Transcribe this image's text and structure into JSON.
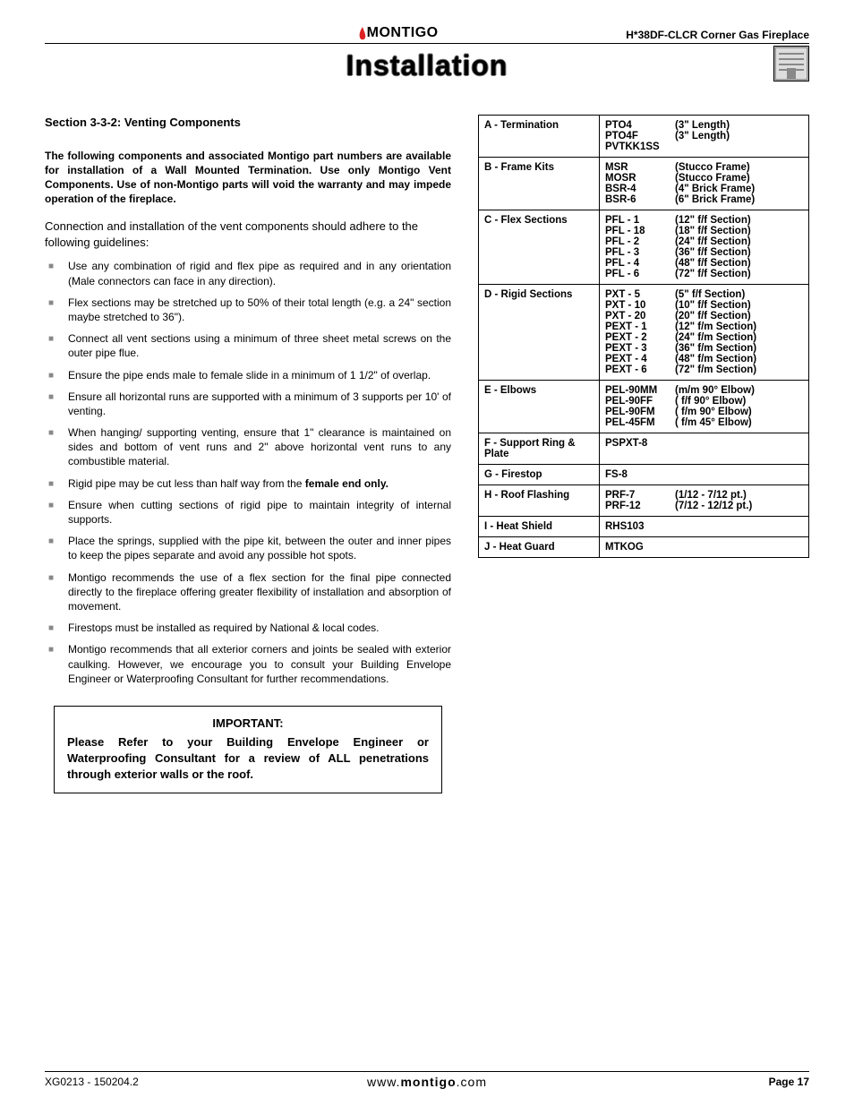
{
  "header": {
    "brand_text": "MONTIGO",
    "doc_title": "H*38DF-CLCR Corner Gas Fireplace"
  },
  "main_title": "Installation",
  "section_heading": "Section 3-3-2:  Venting Components",
  "bold_paragraph": "The following components and associated Montigo part numbers are available for installation of a Wall Mounted Termination. Use only Montigo Vent Components.  Use of non-Montigo parts will void the warranty and may impede operation of the fireplace.",
  "intro_paragraph": "Connection and installation of the vent components should adhere to the following guidelines:",
  "bullets": [
    {
      "text": "Use any combination of rigid and flex pipe as required and in any orientation (Male connectors can face in any direction)."
    },
    {
      "text": "Flex sections may be stretched up to 50% of their total length (e.g. a 24\" section maybe stretched to 36\")."
    },
    {
      "text": "Connect all vent sections using a minimum of three sheet metal screws on the outer pipe flue."
    },
    {
      "text": "Ensure the pipe ends male to female slide in a minimum of 1 1/2\" of overlap."
    },
    {
      "text": "Ensure all horizontal runs are supported with a minimum of 3 supports per 10' of venting."
    },
    {
      "text": "When hanging/ supporting venting, ensure that 1\" clearance is maintained on sides and bottom of vent runs and 2\" above horizontal vent runs to any combustible material."
    },
    {
      "pre": "Rigid pipe may be cut less than half way from the ",
      "bold": "female end only."
    },
    {
      "text": "Ensure when cutting sections of rigid pipe to maintain integrity of internal supports."
    },
    {
      "text": "Place the springs, supplied with the pipe kit, between the outer and inner pipes to keep the pipes separate and avoid any possible hot spots."
    },
    {
      "text": "Montigo recommends the use of a flex section for the final pipe connected directly to the fireplace offering greater flexibility of installation and absorption of movement."
    },
    {
      "text": "Firestops must be installed as required by National & local codes."
    },
    {
      "text": "Montigo recommends that all exterior corners and joints be sealed with exterior caulking. However, we encourage you to consult your Building Envelope Engineer or Waterproofing Consultant for further recommendations."
    }
  ],
  "important": {
    "title": "IMPORTANT:",
    "body": "Please Refer to your Building Envelope Engineer or Waterproofing Consultant for a review of ALL penetrations through exterior walls or the roof."
  },
  "parts_table": [
    {
      "category": "A - Termination",
      "rows": [
        {
          "code": "PTO4",
          "desc": "(3\" Length)"
        },
        {
          "code": "PTO4F",
          "desc": "(3\" Length)"
        },
        {
          "code": "PVTKK1SS",
          "desc": ""
        }
      ]
    },
    {
      "category": "B - Frame Kits",
      "rows": [
        {
          "code": "MSR",
          "desc": "(Stucco Frame)"
        },
        {
          "code": "MOSR",
          "desc": "(Stucco Frame)"
        },
        {
          "code": "BSR-4",
          "desc": "(4\" Brick Frame)"
        },
        {
          "code": "BSR-6",
          "desc": "(6\" Brick Frame)"
        }
      ]
    },
    {
      "category": "C - Flex Sections",
      "rows": [
        {
          "code": "PFL - 1",
          "desc": "(12\" f/f Section)"
        },
        {
          "code": "PFL - 18",
          "desc": "(18\" f/f Section)"
        },
        {
          "code": "PFL - 2",
          "desc": "(24\" f/f Section)"
        },
        {
          "code": "PFL - 3",
          "desc": "(36\" f/f Section)"
        },
        {
          "code": "PFL - 4",
          "desc": "(48\" f/f Section)"
        },
        {
          "code": "PFL - 6",
          "desc": "(72\" f/f Section)"
        }
      ]
    },
    {
      "category": "D - Rigid Sections",
      "rows": [
        {
          "code": "PXT - 5",
          "desc": "(5\" f/f Section)"
        },
        {
          "code": "PXT - 10",
          "desc": "(10\" f/f Section)"
        },
        {
          "code": "PXT - 20",
          "desc": "(20\" f/f Section)"
        },
        {
          "code": "PEXT - 1",
          "desc": "(12\" f/m Section)"
        },
        {
          "code": "PEXT - 2",
          "desc": "(24\" f/m Section)"
        },
        {
          "code": "PEXT - 3",
          "desc": "(36\" f/m Section)"
        },
        {
          "code": "PEXT - 4",
          "desc": "(48\" f/m Section)"
        },
        {
          "code": "PEXT - 6",
          "desc": "(72\" f/m Section)"
        }
      ]
    },
    {
      "category": "E - Elbows",
      "rows": [
        {
          "code": "PEL-90MM",
          "desc": "(m/m 90° Elbow)"
        },
        {
          "code": "PEL-90FF",
          "desc": "( f/f 90° Elbow)"
        },
        {
          "code": "PEL-90FM",
          "desc": "( f/m 90° Elbow)"
        },
        {
          "code": "PEL-45FM",
          "desc": "( f/m 45° Elbow)"
        }
      ]
    },
    {
      "category": "F - Support Ring & Plate",
      "single": "PSPXT-8"
    },
    {
      "category": "G - Firestop",
      "single": "FS-8"
    },
    {
      "category": "H - Roof Flashing",
      "rows": [
        {
          "code": "PRF-7",
          "desc": "(1/12 - 7/12 pt.)"
        },
        {
          "code": "PRF-12",
          "desc": "(7/12 - 12/12 pt.)"
        }
      ]
    },
    {
      "category": "I - Heat Shield",
      "single": "RHS103"
    },
    {
      "category": "J - Heat Guard",
      "single": "MTKOG"
    }
  ],
  "footer": {
    "left": "XG0213 - 150204.2",
    "center_pre": "www.",
    "center_bold": "montigo",
    "center_post": ".com",
    "right": "Page 17"
  },
  "colors": {
    "bullet": "#888888",
    "flame": "#d22",
    "text": "#000000",
    "background": "#ffffff"
  }
}
